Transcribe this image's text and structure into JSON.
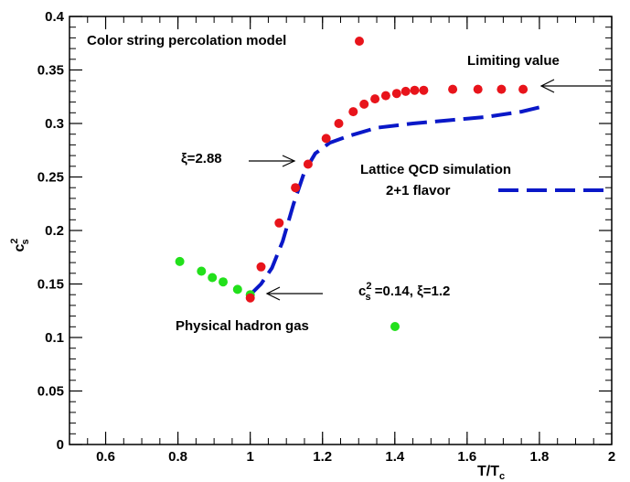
{
  "chart_data": {
    "type": "scatter",
    "xlabel": {
      "main": "T/T",
      "sub": "c"
    },
    "ylabel": {
      "main": "c",
      "sup": "2",
      "sub": "s"
    },
    "xlim": [
      0.5,
      2.0
    ],
    "ylim": [
      0,
      0.4
    ],
    "x_ticks": [
      "0.6",
      "0.8",
      "1",
      "1.2",
      "1.4",
      "1.6",
      "1.8",
      "2"
    ],
    "x_tick_values": [
      0.6,
      0.8,
      1.0,
      1.2,
      1.4,
      1.6,
      1.8,
      2.0
    ],
    "y_ticks": [
      "0",
      "0.05",
      "0.1",
      "0.15",
      "0.2",
      "0.25",
      "0.3",
      "0.35",
      "0.4"
    ],
    "y_tick_values": [
      0,
      0.05,
      0.1,
      0.15,
      0.2,
      0.25,
      0.3,
      0.35,
      0.4
    ],
    "grid": false,
    "series": [
      {
        "name": "Color string percolation model",
        "marker": "circle",
        "color": "#e8141b",
        "points": [
          [
            1.0,
            0.137
          ],
          [
            1.03,
            0.166
          ],
          [
            1.08,
            0.207
          ],
          [
            1.125,
            0.24
          ],
          [
            1.16,
            0.262
          ],
          [
            1.21,
            0.286
          ],
          [
            1.245,
            0.3
          ],
          [
            1.285,
            0.311
          ],
          [
            1.315,
            0.318
          ],
          [
            1.345,
            0.323
          ],
          [
            1.375,
            0.326
          ],
          [
            1.405,
            0.328
          ],
          [
            1.43,
            0.33
          ],
          [
            1.455,
            0.331
          ],
          [
            1.48,
            0.331
          ],
          [
            1.56,
            0.332
          ],
          [
            1.63,
            0.332
          ],
          [
            1.695,
            0.332
          ],
          [
            1.755,
            0.332
          ]
        ]
      },
      {
        "name": "Physical hadron gas",
        "marker": "circle",
        "color": "#22e01b",
        "points": [
          [
            0.805,
            0.171
          ],
          [
            0.865,
            0.162
          ],
          [
            0.895,
            0.156
          ],
          [
            0.925,
            0.152
          ],
          [
            0.965,
            0.145
          ],
          [
            1.0,
            0.14
          ]
        ]
      },
      {
        "name": "Lattice QCD simulation 2+1 flavor",
        "line_style": "dashed",
        "color": "#0a18c8",
        "points": [
          [
            1.0,
            0.14
          ],
          [
            1.03,
            0.15
          ],
          [
            1.06,
            0.165
          ],
          [
            1.09,
            0.19
          ],
          [
            1.12,
            0.225
          ],
          [
            1.15,
            0.255
          ],
          [
            1.18,
            0.272
          ],
          [
            1.22,
            0.282
          ],
          [
            1.27,
            0.288
          ],
          [
            1.35,
            0.296
          ],
          [
            1.45,
            0.3
          ],
          [
            1.55,
            0.303
          ],
          [
            1.65,
            0.306
          ],
          [
            1.75,
            0.311
          ],
          [
            1.8,
            0.315
          ]
        ]
      }
    ],
    "annotations": {
      "percolation": "Color string percolation model",
      "limiting": "Limiting value",
      "xi288": "ξ=2.88",
      "lattice_1": "Lattice QCD simulation",
      "lattice_2": "2+1 flavor",
      "cs_main": "c",
      "cs_sup": "2",
      "cs_sub": "s",
      "cs_rest": " =0.14, ξ=1.2",
      "hadron": "Physical hadron gas"
    },
    "colors": {
      "red": "#e8141b",
      "green": "#22e01b",
      "blue": "#0a18c8",
      "axis": "#000000"
    }
  }
}
